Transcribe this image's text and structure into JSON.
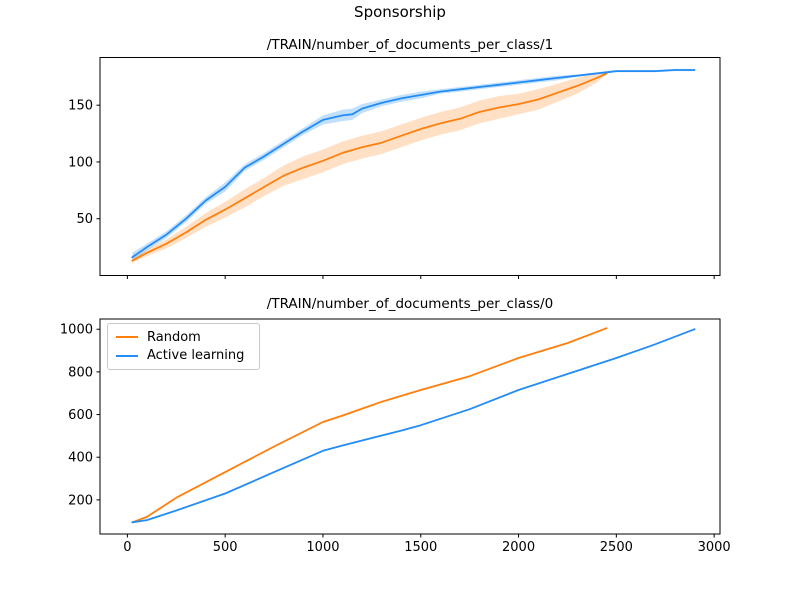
{
  "figure": {
    "title": "Sponsorship",
    "background": "#ffffff"
  },
  "colors": {
    "random": "#ff7f0e",
    "active_learning": "#238cf5",
    "axis": "#000000",
    "text": "#000000",
    "legend_border": "#c9c9c9"
  },
  "chart_data": [
    {
      "id": "train-docs-class-1",
      "type": "line",
      "title": "/TRAIN/number_of_documents_per_class/1",
      "xlabel": "",
      "ylabel": "",
      "xlim": [
        -140,
        3030
      ],
      "ylim": [
        0,
        192
      ],
      "xticks": [
        0,
        500,
        1000,
        1500,
        2000,
        2500,
        3000
      ],
      "yticks": [
        50,
        100,
        150
      ],
      "xtick_labels_visible": false,
      "grid": false,
      "legend_visible": false,
      "series": [
        {
          "name": "Random",
          "color": "#ff7f0e",
          "band_opacity": 0.24,
          "x": [
            25,
            100,
            200,
            300,
            400,
            500,
            600,
            700,
            800,
            900,
            1000,
            1100,
            1200,
            1300,
            1400,
            1500,
            1600,
            1700,
            1800,
            1900,
            2000,
            2100,
            2200,
            2300,
            2400,
            2450
          ],
          "y": [
            13,
            20,
            28,
            38,
            49,
            58,
            68,
            78,
            88,
            95,
            101,
            108,
            113,
            117,
            123,
            129,
            134,
            138,
            144,
            148,
            151,
            155,
            161,
            167,
            174,
            178
          ],
          "band": [
            2,
            3,
            4,
            5,
            6,
            7,
            8,
            8,
            9,
            10,
            10,
            10,
            10,
            10,
            10,
            10,
            10,
            10,
            10,
            10,
            9,
            9,
            8,
            7,
            4,
            1
          ]
        },
        {
          "name": "Active learning",
          "color": "#238cf5",
          "band_opacity": 0.28,
          "x": [
            25,
            100,
            200,
            300,
            400,
            500,
            600,
            700,
            800,
            900,
            1000,
            1100,
            1150,
            1200,
            1300,
            1400,
            1500,
            1600,
            1700,
            1800,
            1900,
            2000,
            2100,
            2200,
            2300,
            2400,
            2450,
            2500,
            2600,
            2700,
            2800,
            2900
          ],
          "y": [
            16,
            25,
            36,
            50,
            66,
            78,
            95,
            105,
            116,
            127,
            137,
            141,
            142,
            147,
            152,
            156,
            159,
            162,
            164,
            166,
            168,
            170,
            172,
            174,
            176,
            178,
            179,
            180,
            180,
            180,
            181,
            181
          ],
          "band": [
            4,
            3,
            3,
            3,
            3,
            4,
            3,
            3,
            3,
            3,
            4,
            5,
            5,
            4,
            3,
            3,
            3,
            2,
            2,
            2,
            2,
            2,
            2,
            2,
            1,
            1,
            1,
            1,
            1,
            1,
            1,
            1
          ]
        }
      ]
    },
    {
      "id": "train-docs-class-0",
      "type": "line",
      "title": "/TRAIN/number_of_documents_per_class/0",
      "xlabel": "",
      "ylabel": "",
      "xlim": [
        -140,
        3030
      ],
      "ylim": [
        40,
        1048
      ],
      "xticks": [
        0,
        500,
        1000,
        1500,
        2000,
        2500,
        3000
      ],
      "yticks": [
        200,
        400,
        600,
        800,
        1000
      ],
      "xtick_labels_visible": true,
      "grid": false,
      "legend_visible": true,
      "legend_position": "upper left",
      "series": [
        {
          "name": "Random",
          "color": "#ff7f0e",
          "band_opacity": 0.14,
          "x": [
            25,
            100,
            250,
            500,
            750,
            1000,
            1100,
            1300,
            1500,
            1750,
            2000,
            2250,
            2450
          ],
          "y": [
            95,
            120,
            210,
            330,
            450,
            565,
            595,
            660,
            715,
            780,
            865,
            935,
            1005
          ],
          "band": [
            3,
            3,
            4,
            5,
            5,
            6,
            6,
            6,
            5,
            5,
            4,
            4,
            2
          ]
        },
        {
          "name": "Active learning",
          "color": "#238cf5",
          "band_opacity": 0.14,
          "x": [
            25,
            100,
            250,
            500,
            750,
            1000,
            1100,
            1250,
            1400,
            1500,
            1750,
            2000,
            2250,
            2500,
            2700,
            2900
          ],
          "y": [
            95,
            105,
            150,
            230,
            330,
            430,
            455,
            490,
            525,
            550,
            625,
            715,
            790,
            865,
            930,
            1000
          ],
          "band": [
            3,
            3,
            3,
            4,
            4,
            4,
            4,
            4,
            4,
            4,
            4,
            3,
            3,
            3,
            2,
            2
          ]
        }
      ]
    }
  ]
}
